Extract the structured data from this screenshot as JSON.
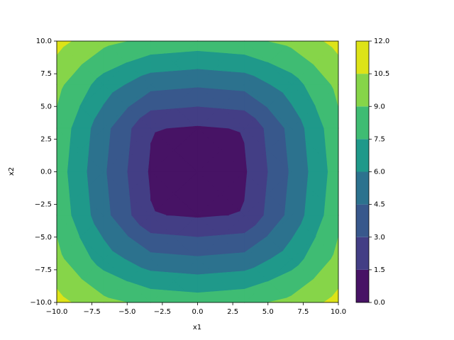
{
  "chart_data": {
    "type": "contourf",
    "xlabel": "x1",
    "ylabel": "x2",
    "x": [
      -10,
      -6.67,
      -3.33,
      0,
      3.33,
      6.67,
      10
    ],
    "y": [
      -10,
      -6.67,
      -3.33,
      0,
      3.33,
      6.67,
      10
    ],
    "z": [
      [
        11,
        9.4,
        8.6,
        8.3,
        8.6,
        9.4,
        11
      ],
      [
        9.4,
        6.8,
        5.0,
        4.7,
        5.0,
        6.8,
        9.4
      ],
      [
        8.6,
        5.0,
        1.6,
        1.3,
        1.6,
        5.0,
        8.6
      ],
      [
        8.3,
        4.7,
        1.3,
        0,
        1.3,
        4.7,
        8.3
      ],
      [
        8.6,
        5.0,
        1.6,
        1.3,
        1.6,
        5.0,
        8.6
      ],
      [
        9.4,
        6.8,
        5.0,
        4.7,
        5.0,
        6.8,
        9.4
      ],
      [
        11,
        9.4,
        8.6,
        8.3,
        8.6,
        9.4,
        11
      ]
    ],
    "xlim": [
      -10,
      10
    ],
    "ylim": [
      -10,
      10
    ],
    "xticks": [
      {
        "value": -10,
        "label": "−10.0"
      },
      {
        "value": -7.5,
        "label": "−7.5"
      },
      {
        "value": -5,
        "label": "−5.0"
      },
      {
        "value": -2.5,
        "label": "−2.5"
      },
      {
        "value": 0,
        "label": "0.0"
      },
      {
        "value": 2.5,
        "label": "2.5"
      },
      {
        "value": 5,
        "label": "5.0"
      },
      {
        "value": 7.5,
        "label": "7.5"
      },
      {
        "value": 10,
        "label": "10.0"
      }
    ],
    "yticks": [
      {
        "value": -10,
        "label": "−10.0"
      },
      {
        "value": -7.5,
        "label": "−7.5"
      },
      {
        "value": -5,
        "label": "−5.0"
      },
      {
        "value": -2.5,
        "label": "−2.5"
      },
      {
        "value": 0,
        "label": "0.0"
      },
      {
        "value": 2.5,
        "label": "2.5"
      },
      {
        "value": 5,
        "label": "5.0"
      },
      {
        "value": 7.5,
        "label": "7.5"
      },
      {
        "value": 10,
        "label": "10.0"
      }
    ],
    "levels": [
      {
        "value": 0,
        "label": "0.0"
      },
      {
        "value": 1.5,
        "label": "1.5"
      },
      {
        "value": 3,
        "label": "3.0"
      },
      {
        "value": 4.5,
        "label": "4.5"
      },
      {
        "value": 6,
        "label": "6.0"
      },
      {
        "value": 7.5,
        "label": "7.5"
      },
      {
        "value": 9,
        "label": "9.0"
      },
      {
        "value": 10.5,
        "label": "10.5"
      },
      {
        "value": 12,
        "label": "12.0"
      }
    ],
    "colors": [
      "#471365",
      "#433e85",
      "#38588c",
      "#2c728e",
      "#1f998a",
      "#3fbc73",
      "#86d549",
      "#dde318"
    ]
  }
}
